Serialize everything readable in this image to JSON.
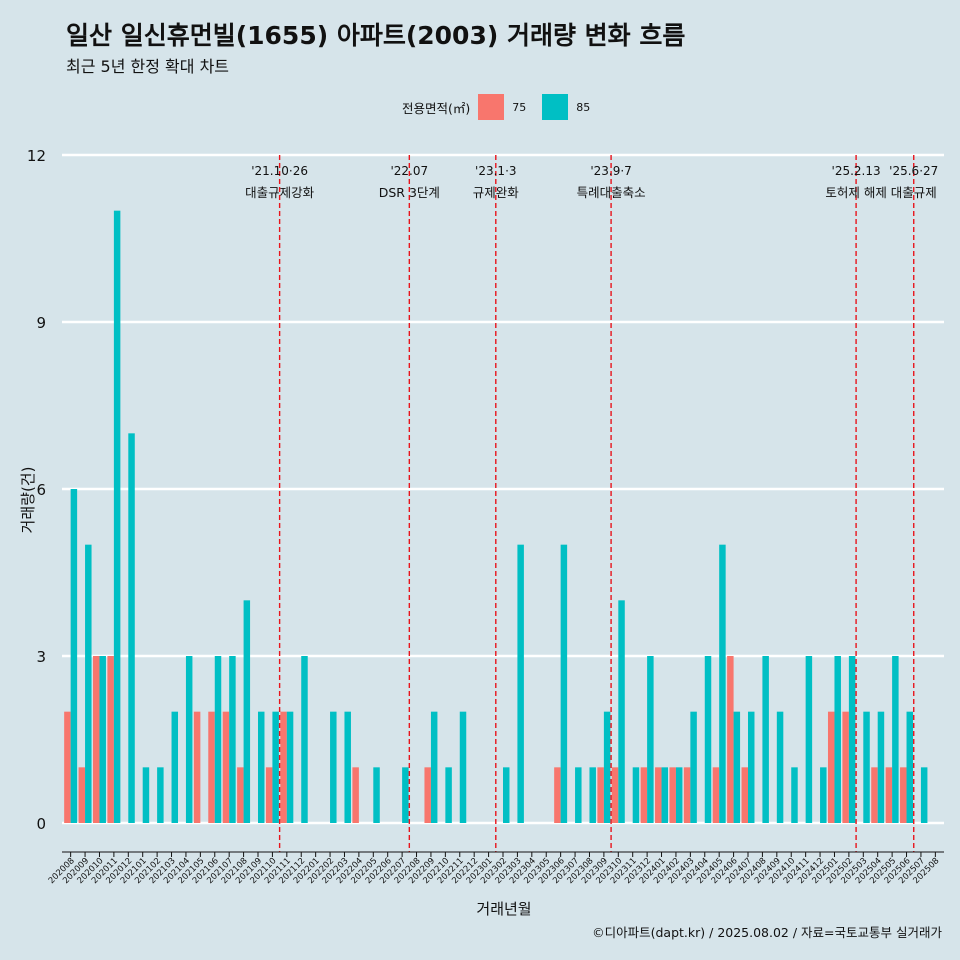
{
  "title": "일산 일신휴먼빌(1655) 아파트(2003) 거래량 변화 흐름",
  "subtitle": "최근 5년 한정 확대 차트",
  "legend": {
    "title": "전용면적(㎡)",
    "items": [
      {
        "label": "75",
        "color": "#f8766d"
      },
      {
        "label": "85",
        "color": "#00bfc4"
      }
    ]
  },
  "caption": "©디아파트(dapt.kr) / 2025.08.02 / 자료=국토교통부 실거래가",
  "chart_data": {
    "type": "bar",
    "title": "일산 일신휴먼빌(1655) 아파트(2003) 거래량 변화 흐름",
    "subtitle": "최근 5년 한정 확대 차트",
    "xlabel": "거래년월",
    "ylabel": "거래량(건)",
    "ylim": [
      0,
      12
    ],
    "yticks": [
      0,
      3,
      6,
      9,
      12
    ],
    "grid": true,
    "legend_position": "top",
    "categories": [
      "202008",
      "202009",
      "202010",
      "202011",
      "202012",
      "202101",
      "202102",
      "202103",
      "202104",
      "202105",
      "202106",
      "202107",
      "202108",
      "202109",
      "202110",
      "202111",
      "202112",
      "202201",
      "202202",
      "202203",
      "202204",
      "202205",
      "202206",
      "202207",
      "202208",
      "202209",
      "202210",
      "202211",
      "202212",
      "202301",
      "202302",
      "202303",
      "202304",
      "202305",
      "202306",
      "202307",
      "202308",
      "202309",
      "202310",
      "202311",
      "202312",
      "202401",
      "202402",
      "202403",
      "202404",
      "202405",
      "202406",
      "202407",
      "202408",
      "202409",
      "202410",
      "202411",
      "202412",
      "202501",
      "202502",
      "202503",
      "202504",
      "202505",
      "202506",
      "202507",
      "202508"
    ],
    "series": [
      {
        "name": "75",
        "color": "#f8766d",
        "values": [
          2,
          1,
          3,
          3,
          0,
          0,
          0,
          0,
          0,
          2,
          2,
          2,
          1,
          0,
          1,
          2,
          0,
          0,
          0,
          0,
          1,
          0,
          0,
          0,
          0,
          1,
          0,
          0,
          0,
          0,
          0,
          0,
          0,
          0,
          1,
          0,
          0,
          1,
          1,
          0,
          1,
          1,
          1,
          1,
          0,
          1,
          3,
          1,
          0,
          0,
          0,
          0,
          0,
          2,
          2,
          0,
          1,
          1,
          1,
          0,
          0
        ]
      },
      {
        "name": "85",
        "color": "#00bfc4",
        "values": [
          6,
          5,
          3,
          11,
          7,
          1,
          1,
          2,
          3,
          0,
          3,
          3,
          4,
          2,
          2,
          2,
          3,
          0,
          2,
          2,
          0,
          1,
          0,
          1,
          0,
          2,
          1,
          2,
          0,
          0,
          1,
          5,
          0,
          0,
          5,
          1,
          1,
          2,
          4,
          1,
          3,
          1,
          1,
          2,
          3,
          5,
          2,
          2,
          3,
          2,
          1,
          3,
          1,
          3,
          3,
          2,
          2,
          3,
          2,
          1,
          0
        ]
      }
    ],
    "annotations": [
      {
        "date_label": "'21.10·26",
        "text": "대출규제강화",
        "after": "202110"
      },
      {
        "date_label": "'22.07",
        "text": "DSR 3단계",
        "after": "202207"
      },
      {
        "date_label": "'23.1·3",
        "text": "규제완화",
        "after": "202301"
      },
      {
        "date_label": "'23.9·7",
        "text": "특례대출축소",
        "after": "202309"
      },
      {
        "date_label": "'25.2.13",
        "text": "토허제 해제",
        "after": "202502"
      },
      {
        "date_label": "'25.6·27",
        "text": "대출규제",
        "after": "202506"
      }
    ]
  }
}
